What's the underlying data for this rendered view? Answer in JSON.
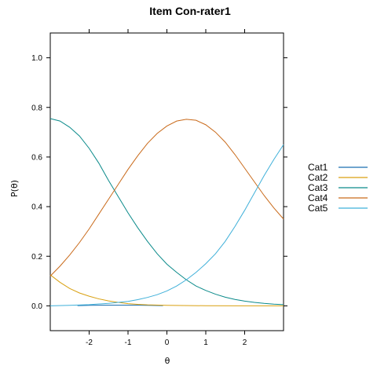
{
  "chart_data": {
    "type": "line",
    "title": "Item Con-rater1",
    "xlabel": "θ",
    "ylabel": "P(θ)",
    "xlim": [
      -3,
      3
    ],
    "ylim": [
      -0.1,
      1.1
    ],
    "x_ticks": [
      -2,
      -1,
      0,
      1,
      2
    ],
    "x_tick_labels": [
      "-2",
      "-1",
      "0",
      "1",
      "2"
    ],
    "y_ticks": [
      0.0,
      0.2,
      0.4,
      0.6,
      0.8,
      1.0
    ],
    "y_tick_labels": [
      "0.0",
      "0.2",
      "0.4",
      "0.6",
      "0.8",
      "1.0"
    ],
    "grid": false,
    "legend_position": "right",
    "series": [
      {
        "name": "Cat1",
        "color": "#1a6fb0",
        "x": [
          -2.3,
          -2.0,
          -1.5,
          -1.0,
          -0.5,
          -0.1
        ],
        "y": [
          0.001,
          0.002,
          0.003,
          0.003,
          0.002,
          0.001
        ]
      },
      {
        "name": "Cat2",
        "color": "#d9a010",
        "x": [
          -3.0,
          -2.75,
          -2.5,
          -2.25,
          -2.0,
          -1.75,
          -1.5,
          -1.25,
          -1.0,
          -0.75,
          -0.5,
          0.0,
          1.0,
          2.0,
          3.0
        ],
        "y": [
          0.125,
          0.095,
          0.07,
          0.052,
          0.039,
          0.028,
          0.02,
          0.014,
          0.009,
          0.006,
          0.004,
          0.002,
          0.0005,
          0.0001,
          0.0
        ]
      },
      {
        "name": "Cat3",
        "color": "#0a8a8a",
        "x": [
          -3.0,
          -2.75,
          -2.5,
          -2.25,
          -2.0,
          -1.75,
          -1.5,
          -1.25,
          -1.0,
          -0.75,
          -0.5,
          -0.25,
          0.0,
          0.25,
          0.5,
          0.75,
          1.0,
          1.25,
          1.5,
          1.75,
          2.0,
          2.25,
          2.5,
          2.75,
          3.0
        ],
        "y": [
          0.755,
          0.745,
          0.72,
          0.685,
          0.635,
          0.575,
          0.505,
          0.44,
          0.375,
          0.315,
          0.26,
          0.21,
          0.168,
          0.135,
          0.105,
          0.08,
          0.062,
          0.047,
          0.035,
          0.026,
          0.019,
          0.014,
          0.01,
          0.007,
          0.005
        ]
      },
      {
        "name": "Cat4",
        "color": "#c96a1a",
        "x": [
          -3.0,
          -2.75,
          -2.5,
          -2.25,
          -2.0,
          -1.75,
          -1.5,
          -1.25,
          -1.0,
          -0.75,
          -0.5,
          -0.25,
          0.0,
          0.25,
          0.5,
          0.75,
          1.0,
          1.25,
          1.5,
          1.75,
          2.0,
          2.25,
          2.5,
          2.75,
          3.0
        ],
        "y": [
          0.12,
          0.16,
          0.205,
          0.255,
          0.31,
          0.37,
          0.43,
          0.49,
          0.55,
          0.605,
          0.655,
          0.695,
          0.725,
          0.745,
          0.752,
          0.748,
          0.73,
          0.7,
          0.66,
          0.61,
          0.555,
          0.5,
          0.445,
          0.395,
          0.35
        ]
      },
      {
        "name": "Cat5",
        "color": "#3fb0d9",
        "x": [
          -3.0,
          -2.5,
          -2.0,
          -1.5,
          -1.0,
          -0.75,
          -0.5,
          -0.25,
          0.0,
          0.25,
          0.5,
          0.75,
          1.0,
          1.25,
          1.5,
          1.75,
          2.0,
          2.25,
          2.5,
          2.75,
          3.0
        ],
        "y": [
          0.0,
          0.002,
          0.005,
          0.01,
          0.018,
          0.025,
          0.034,
          0.045,
          0.06,
          0.08,
          0.105,
          0.135,
          0.17,
          0.21,
          0.26,
          0.32,
          0.385,
          0.455,
          0.525,
          0.59,
          0.65
        ]
      }
    ]
  }
}
